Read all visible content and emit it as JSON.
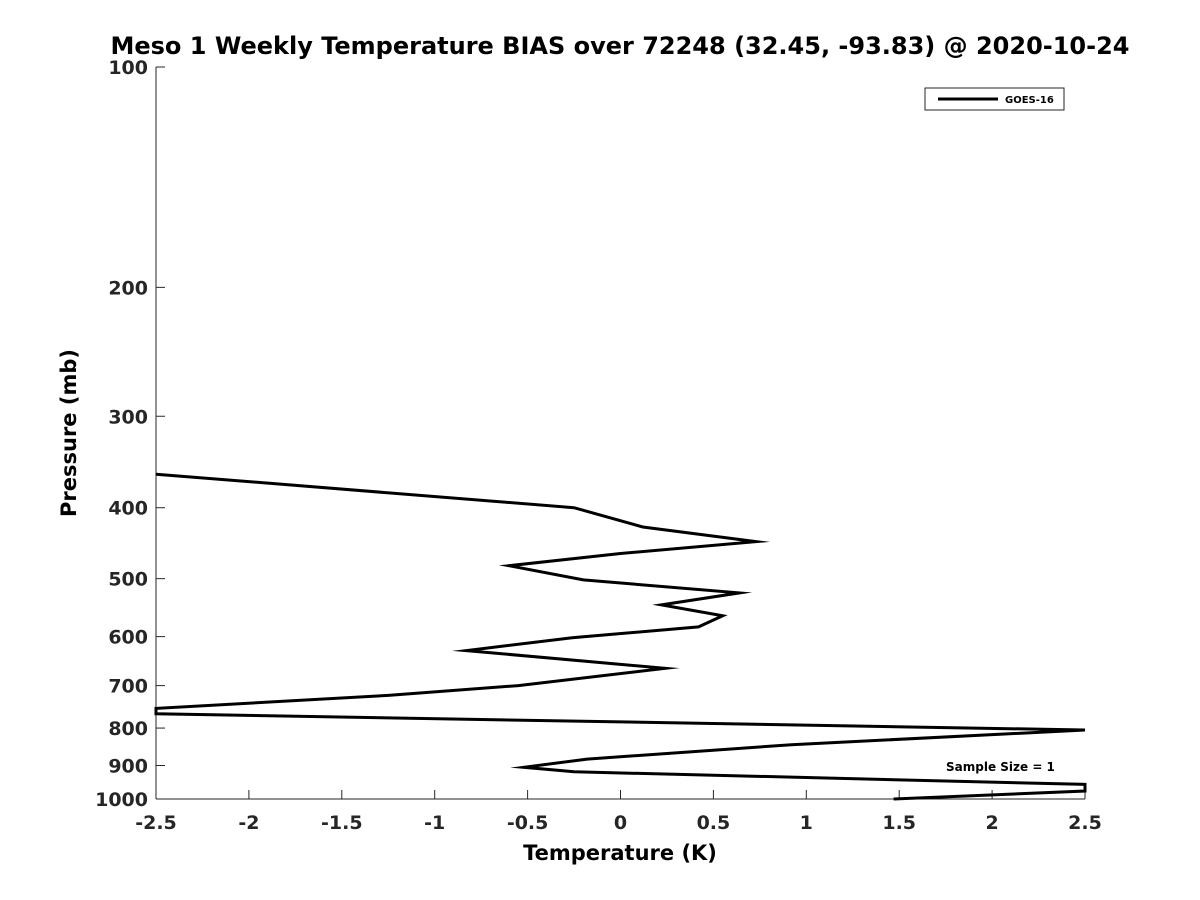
{
  "chart_data": {
    "type": "line",
    "title": "Meso 1 Weekly Temperature BIAS over 72248 (32.45, -93.83) @ 2020-10-24",
    "xlabel": "Temperature (K)",
    "ylabel": "Pressure (mb)",
    "xlim": [
      -2.5,
      2.5
    ],
    "ylim": [
      100,
      1000
    ],
    "y_scale": "log",
    "y_reversed": true,
    "grid": false,
    "x_ticks": [
      -2.5,
      -2,
      -1.5,
      -1,
      -0.5,
      0,
      0.5,
      1,
      1.5,
      2,
      2.5
    ],
    "x_tick_labels": [
      "-2.5",
      "-2",
      "-1.5",
      "-1",
      "-0.5",
      "0",
      "0.5",
      "1",
      "1.5",
      "2",
      "2.5"
    ],
    "y_ticks": [
      100,
      200,
      300,
      400,
      500,
      600,
      700,
      800,
      900,
      1000
    ],
    "y_tick_labels": [
      "100",
      "200",
      "300",
      "400",
      "500",
      "600",
      "700",
      "800",
      "900",
      "1000"
    ],
    "legend_position": "top-right",
    "series": [
      {
        "name": "GOES-16",
        "color": "#000000",
        "points": [
          {
            "x": -2.5,
            "y": 360
          },
          {
            "x": -0.25,
            "y": 400
          },
          {
            "x": 0.12,
            "y": 425
          },
          {
            "x": 0.73,
            "y": 445
          },
          {
            "x": 0.0,
            "y": 462
          },
          {
            "x": -0.6,
            "y": 480
          },
          {
            "x": -0.2,
            "y": 502
          },
          {
            "x": 0.64,
            "y": 523
          },
          {
            "x": 0.22,
            "y": 543
          },
          {
            "x": 0.55,
            "y": 562
          },
          {
            "x": 0.42,
            "y": 582
          },
          {
            "x": -0.26,
            "y": 602
          },
          {
            "x": -0.83,
            "y": 627
          },
          {
            "x": 0.24,
            "y": 663
          },
          {
            "x": -0.55,
            "y": 700
          },
          {
            "x": -1.25,
            "y": 722
          },
          {
            "x": -2.5,
            "y": 752
          },
          {
            "x": -2.5,
            "y": 765
          },
          {
            "x": 2.5,
            "y": 805
          },
          {
            "x": 0.92,
            "y": 843
          },
          {
            "x": -0.18,
            "y": 882
          },
          {
            "x": -0.52,
            "y": 905
          },
          {
            "x": -0.25,
            "y": 918
          },
          {
            "x": 2.5,
            "y": 955
          },
          {
            "x": 2.5,
            "y": 975
          },
          {
            "x": 1.47,
            "y": 1000
          }
        ]
      }
    ],
    "annotations": [
      {
        "text": "Sample Size = 1"
      }
    ]
  }
}
